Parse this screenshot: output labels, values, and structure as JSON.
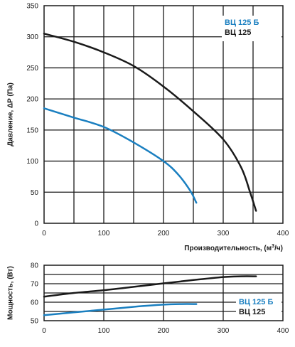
{
  "chart_data": [
    {
      "type": "line",
      "xlabel": "Производительность, (м³/ч)",
      "xlabel_parts": {
        "main": "Производительность, (м",
        "sup": "3",
        "tail": "/ч)"
      },
      "ylabel": "Давление, ΔP (Па)",
      "xlim": [
        0,
        400
      ],
      "ylim": [
        0,
        350
      ],
      "x_ticks": [
        0,
        100,
        200,
        300,
        400
      ],
      "y_ticks": [
        0,
        50,
        100,
        150,
        200,
        250,
        300,
        350
      ],
      "legend_position": "top-right",
      "grid": true,
      "series": [
        {
          "name": "ВЦ 125 Б",
          "color": "#1a7fc0",
          "x": [
            0,
            50,
            100,
            150,
            200,
            225,
            245,
            255
          ],
          "y": [
            185,
            170,
            155,
            130,
            100,
            78,
            52,
            33
          ]
        },
        {
          "name": "ВЦ 125",
          "color": "#1a1a1a",
          "x": [
            0,
            50,
            100,
            150,
            200,
            250,
            300,
            330,
            345,
            355
          ],
          "y": [
            305,
            292,
            275,
            253,
            220,
            180,
            135,
            90,
            50,
            20
          ]
        }
      ]
    },
    {
      "type": "line",
      "xlabel": "",
      "ylabel": "Мощность, (Вт)",
      "xlim": [
        0,
        400
      ],
      "ylim": [
        50,
        80
      ],
      "x_ticks": [
        0,
        100,
        200,
        300,
        400
      ],
      "y_ticks": [
        50,
        60,
        70,
        80
      ],
      "legend_position": "bottom-right",
      "grid": true,
      "series": [
        {
          "name": "ВЦ 125 Б",
          "color": "#1a7fc0",
          "x": [
            0,
            50,
            100,
            150,
            200,
            230,
            255
          ],
          "y": [
            53,
            54.5,
            56,
            57.5,
            58.7,
            59,
            59
          ]
        },
        {
          "name": "ВЦ 125",
          "color": "#1a1a1a",
          "x": [
            0,
            50,
            100,
            150,
            200,
            250,
            300,
            330,
            355
          ],
          "y": [
            63,
            65,
            66.5,
            68.3,
            70.2,
            72,
            73.6,
            74,
            74
          ]
        }
      ]
    }
  ]
}
